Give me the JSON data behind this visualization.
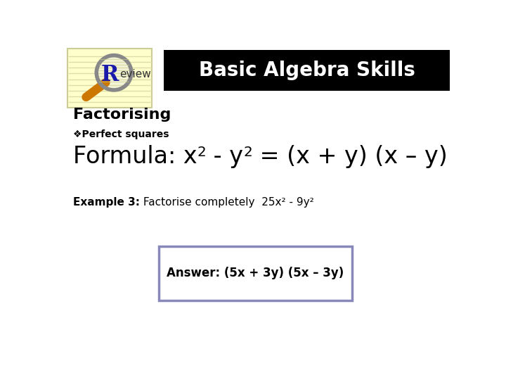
{
  "title": "Basic Algebra Skills",
  "title_bg": "#000000",
  "title_color": "#ffffff",
  "title_fontsize": 20,
  "section_heading": "Factorising",
  "section_heading_fontsize": 16,
  "bullet_label": "❖Perfect squares",
  "bullet_fontsize": 10,
  "formula_fontsize": 24,
  "example_label": "Example 3:",
  "example_text": " Factorise completely  25x² - 9y²",
  "example_fontsize": 11,
  "answer_text": "Answer: (5x + 3y) (5x – 3y)",
  "answer_fontsize": 12,
  "answer_box_color": "#8888bb",
  "bg_color": "#ffffff",
  "notepad_color": "#ffffcc",
  "notepad_line_color": "#ddddaa",
  "magnifier_ring_color": "#888888",
  "magnifier_handle_color": "#cc7700",
  "R_color": "#1a1aaa",
  "review_color": "#333333"
}
